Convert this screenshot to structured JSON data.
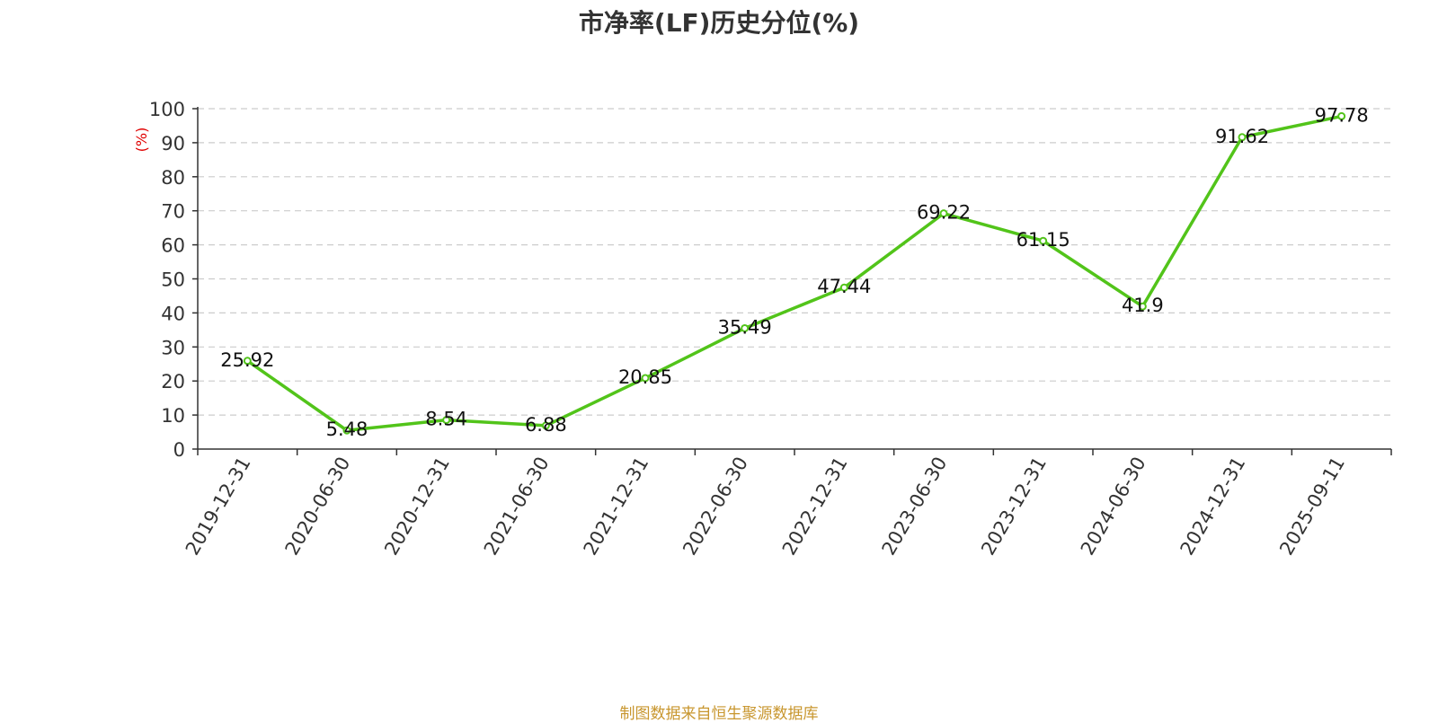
{
  "colors": {
    "line": "#52c41a",
    "source": "#c8962e",
    "ylabel": "#e00000",
    "grid": "#cccccc",
    "axis": "#333333"
  },
  "footer": {
    "source": "制图数据来自恒生聚源数据库"
  },
  "chart_data": {
    "type": "line",
    "title": "市净率(LF)历史分位(%)",
    "ylabel": "(%)",
    "xlabel": "",
    "ylim": [
      0,
      100
    ],
    "yticks": [
      0,
      10,
      20,
      30,
      40,
      50,
      60,
      70,
      80,
      90,
      100
    ],
    "grid": true,
    "categories": [
      "2019-12-31",
      "2020-06-30",
      "2020-12-31",
      "2021-06-30",
      "2021-12-31",
      "2022-06-30",
      "2022-12-31",
      "2023-06-30",
      "2023-12-31",
      "2024-06-30",
      "2024-12-31",
      "2025-09-11"
    ],
    "series": [
      {
        "values": [
          25.92,
          5.48,
          8.54,
          6.88,
          20.85,
          35.49,
          47.44,
          69.22,
          61.15,
          41.9,
          91.62,
          97.78
        ]
      }
    ]
  }
}
